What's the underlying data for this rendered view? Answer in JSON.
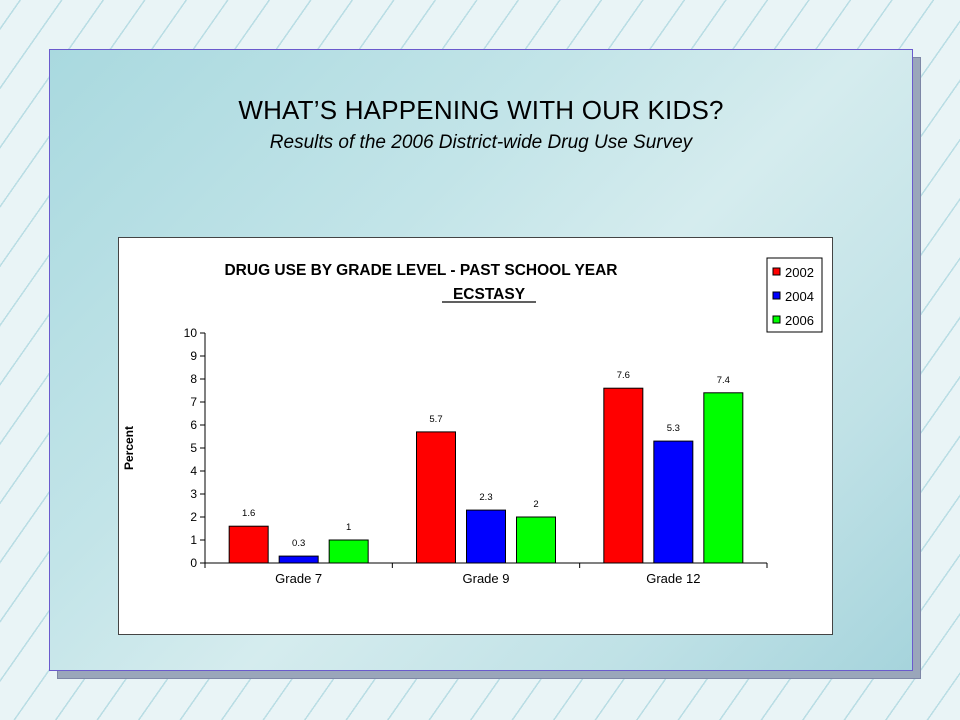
{
  "slide": {
    "title": "WHAT’S HAPPENING WITH OUR KIDS?",
    "subtitle": "Results of the 2006 District-wide Drug Use Survey"
  },
  "colors": {
    "series_2002": "#ff0000",
    "series_2004": "#0000ff",
    "series_2006": "#00ff00"
  },
  "chart_data": {
    "type": "bar",
    "title": "DRUG USE BY GRADE LEVEL - PAST SCHOOL YEAR",
    "subtitle": "ECSTASY",
    "xlabel": "",
    "ylabel": "Percent",
    "ylim": [
      0,
      10
    ],
    "yticks": [
      0,
      1,
      2,
      3,
      4,
      5,
      6,
      7,
      8,
      9,
      10
    ],
    "grid": false,
    "legend": "top-right",
    "categories": [
      "Grade 7",
      "Grade 9",
      "Grade 12"
    ],
    "series": [
      {
        "name": "2002",
        "values": [
          1.6,
          5.7,
          7.6
        ]
      },
      {
        "name": "2004",
        "values": [
          0.3,
          2.3,
          5.3
        ]
      },
      {
        "name": "2006",
        "values": [
          1,
          2,
          7.4
        ]
      }
    ]
  }
}
